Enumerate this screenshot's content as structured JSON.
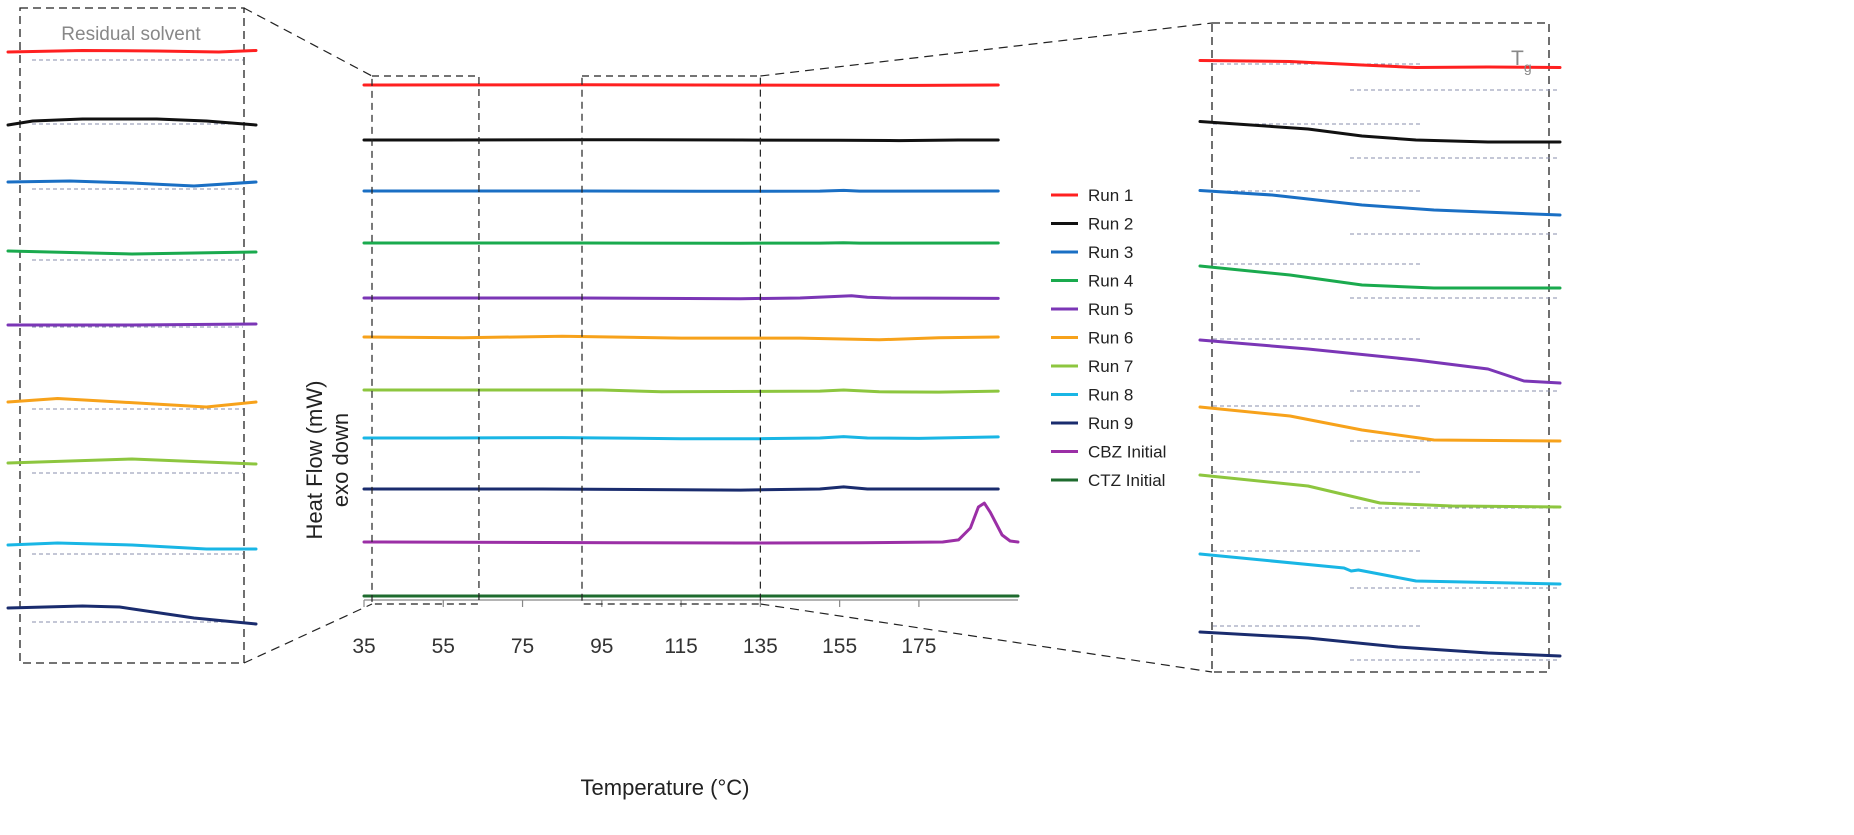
{
  "chart_data": {
    "type": "line",
    "xlabel": "Temperature (°C)",
    "ylabel": "Heat Flow (mW)",
    "ylabel_sub": "exo down",
    "x_ticks": [
      35,
      55,
      75,
      95,
      115,
      135,
      155,
      175
    ],
    "xlim": [
      35,
      200
    ],
    "grid": false,
    "legend_position": "right",
    "insets": {
      "left_label": "Residual solvent",
      "right_label_main": "T",
      "right_label_sub": "g",
      "left_window": [
        35,
        64
      ],
      "right_window": [
        90,
        135
      ]
    },
    "series": [
      {
        "name": "Run 1",
        "color": "#ff2020",
        "main": [
          [
            35,
            0
          ],
          [
            60,
            0.2
          ],
          [
            90,
            0.5
          ],
          [
            120,
            0
          ],
          [
            150,
            -0.5
          ],
          [
            175,
            -1.2
          ],
          [
            195,
            0
          ]
        ],
        "left": [
          [
            0,
            0
          ],
          [
            0.3,
            1.5
          ],
          [
            0.6,
            1
          ],
          [
            0.85,
            0
          ],
          [
            1,
            1.5
          ]
        ],
        "right": [
          [
            0,
            3.5
          ],
          [
            0.25,
            2.5
          ],
          [
            0.45,
            -1
          ],
          [
            0.6,
            -3.5
          ],
          [
            0.8,
            -3
          ],
          [
            1,
            -3.5
          ]
        ]
      },
      {
        "name": "Run 2",
        "color": "#111111",
        "main": [
          [
            35,
            0
          ],
          [
            55,
            0
          ],
          [
            90,
            0.8
          ],
          [
            130,
            0
          ],
          [
            155,
            -0.8
          ],
          [
            170,
            -1.8
          ],
          [
            185,
            0
          ],
          [
            195,
            0
          ]
        ],
        "left": [
          [
            0,
            -7
          ],
          [
            0.1,
            -3
          ],
          [
            0.3,
            -1
          ],
          [
            0.6,
            -1
          ],
          [
            0.8,
            -3
          ],
          [
            1,
            -7
          ]
        ],
        "right": [
          [
            0,
            4.5
          ],
          [
            0.3,
            -3
          ],
          [
            0.45,
            -10
          ],
          [
            0.6,
            -14
          ],
          [
            0.8,
            -16
          ],
          [
            1,
            -16
          ]
        ]
      },
      {
        "name": "Run 3",
        "color": "#1a6fc4",
        "main": [
          [
            35,
            0
          ],
          [
            90,
            0
          ],
          [
            120,
            -0.8
          ],
          [
            150,
            -0.3
          ],
          [
            156,
            1.8
          ],
          [
            160,
            -0.3
          ],
          [
            195,
            0
          ]
        ],
        "left": [
          [
            0,
            0
          ],
          [
            0.25,
            1
          ],
          [
            0.5,
            -1
          ],
          [
            0.75,
            -4
          ],
          [
            1,
            0
          ]
        ],
        "right": [
          [
            0,
            2.5
          ],
          [
            0.2,
            -2
          ],
          [
            0.45,
            -12
          ],
          [
            0.65,
            -17
          ],
          [
            1,
            -22
          ]
        ]
      },
      {
        "name": "Run 4",
        "color": "#1aaa4e",
        "main": [
          [
            35,
            0
          ],
          [
            90,
            0
          ],
          [
            130,
            -0.5
          ],
          [
            150,
            -0.3
          ],
          [
            156,
            1
          ],
          [
            160,
            -0.3
          ],
          [
            195,
            0
          ]
        ],
        "left": [
          [
            0,
            3
          ],
          [
            0.5,
            0
          ],
          [
            1,
            2
          ]
        ],
        "right": [
          [
            0,
            2
          ],
          [
            0.25,
            -7
          ],
          [
            0.45,
            -17
          ],
          [
            0.65,
            -20
          ],
          [
            1,
            -20
          ]
        ]
      },
      {
        "name": "Run 5",
        "color": "#7b36b6",
        "main": [
          [
            35,
            0
          ],
          [
            90,
            0
          ],
          [
            130,
            -2
          ],
          [
            145,
            0
          ],
          [
            153,
            4
          ],
          [
            158,
            6.5
          ],
          [
            162,
            2
          ],
          [
            168,
            0
          ],
          [
            195,
            -1
          ]
        ],
        "left": [
          [
            0,
            0
          ],
          [
            0.5,
            0
          ],
          [
            1,
            1
          ]
        ],
        "right": [
          [
            0,
            1
          ],
          [
            0.3,
            -8
          ],
          [
            0.6,
            -19
          ],
          [
            0.8,
            -28
          ],
          [
            0.9,
            -40
          ],
          [
            1,
            -42
          ]
        ]
      },
      {
        "name": "Run 6",
        "color": "#f7a21b",
        "main": [
          [
            35,
            0
          ],
          [
            60,
            -2
          ],
          [
            85,
            2
          ],
          [
            115,
            -3
          ],
          [
            145,
            -3
          ],
          [
            165,
            -8
          ],
          [
            180,
            -2
          ],
          [
            195,
            0
          ]
        ],
        "left": [
          [
            0,
            0
          ],
          [
            0.2,
            3.5
          ],
          [
            0.45,
            0
          ],
          [
            0.8,
            -5
          ],
          [
            1,
            0
          ]
        ],
        "right": [
          [
            0,
            1
          ],
          [
            0.25,
            -8
          ],
          [
            0.45,
            -22
          ],
          [
            0.65,
            -32
          ],
          [
            1,
            -33
          ]
        ]
      },
      {
        "name": "Run 7",
        "color": "#8dc63f",
        "main": [
          [
            35,
            0
          ],
          [
            60,
            0
          ],
          [
            95,
            0
          ],
          [
            110,
            -5
          ],
          [
            150,
            -3
          ],
          [
            156,
            0
          ],
          [
            165,
            -5
          ],
          [
            180,
            -6
          ],
          [
            195,
            -3
          ]
        ],
        "left": [
          [
            0,
            1
          ],
          [
            0.5,
            5
          ],
          [
            1,
            0
          ]
        ],
        "right": [
          [
            0,
            1
          ],
          [
            0.3,
            -10
          ],
          [
            0.5,
            -27
          ],
          [
            0.7,
            -30
          ],
          [
            1,
            -31
          ]
        ]
      },
      {
        "name": "Run 8",
        "color": "#19b6e5",
        "main": [
          [
            35,
            0
          ],
          [
            55,
            0
          ],
          [
            85,
            1
          ],
          [
            115,
            -2
          ],
          [
            135,
            -2
          ],
          [
            150,
            0
          ],
          [
            156,
            4
          ],
          [
            162,
            0
          ],
          [
            175,
            -1
          ],
          [
            195,
            3
          ]
        ],
        "left": [
          [
            0,
            1
          ],
          [
            0.2,
            3
          ],
          [
            0.5,
            1
          ],
          [
            0.8,
            -3
          ],
          [
            1,
            -3
          ]
        ],
        "right": [
          [
            0,
            -1
          ],
          [
            0.4,
            -15
          ],
          [
            0.42,
            -18
          ],
          [
            0.44,
            -17
          ],
          [
            0.6,
            -28
          ],
          [
            1,
            -31
          ]
        ]
      },
      {
        "name": "Run 9",
        "color": "#1a2c6e",
        "main": [
          [
            35,
            0
          ],
          [
            80,
            0
          ],
          [
            130,
            -3
          ],
          [
            150,
            0
          ],
          [
            156,
            6
          ],
          [
            162,
            0
          ],
          [
            195,
            0
          ]
        ],
        "left": [
          [
            0,
            0
          ],
          [
            0.3,
            2
          ],
          [
            0.45,
            1
          ],
          [
            0.75,
            -10
          ],
          [
            1,
            -16
          ]
        ],
        "right": [
          [
            0,
            0
          ],
          [
            0.3,
            -6
          ],
          [
            0.55,
            -15
          ],
          [
            0.8,
            -21
          ],
          [
            1,
            -24
          ]
        ]
      },
      {
        "name": "CBZ Initial",
        "color": "#9b2fa6",
        "main": [
          [
            35,
            0
          ],
          [
            100,
            -2
          ],
          [
            130,
            -3
          ],
          [
            160,
            -2
          ],
          [
            181,
            0
          ],
          [
            185,
            6
          ],
          [
            188,
            40
          ],
          [
            190,
            100
          ],
          [
            191.5,
            111
          ],
          [
            193,
            85
          ],
          [
            196,
            20
          ],
          [
            198,
            3
          ],
          [
            200,
            0
          ]
        ]
      },
      {
        "name": "CTZ Initial",
        "color": "#1e6b2e",
        "main": [
          [
            35,
            0
          ],
          [
            120,
            0
          ],
          [
            200,
            0
          ]
        ]
      }
    ]
  }
}
